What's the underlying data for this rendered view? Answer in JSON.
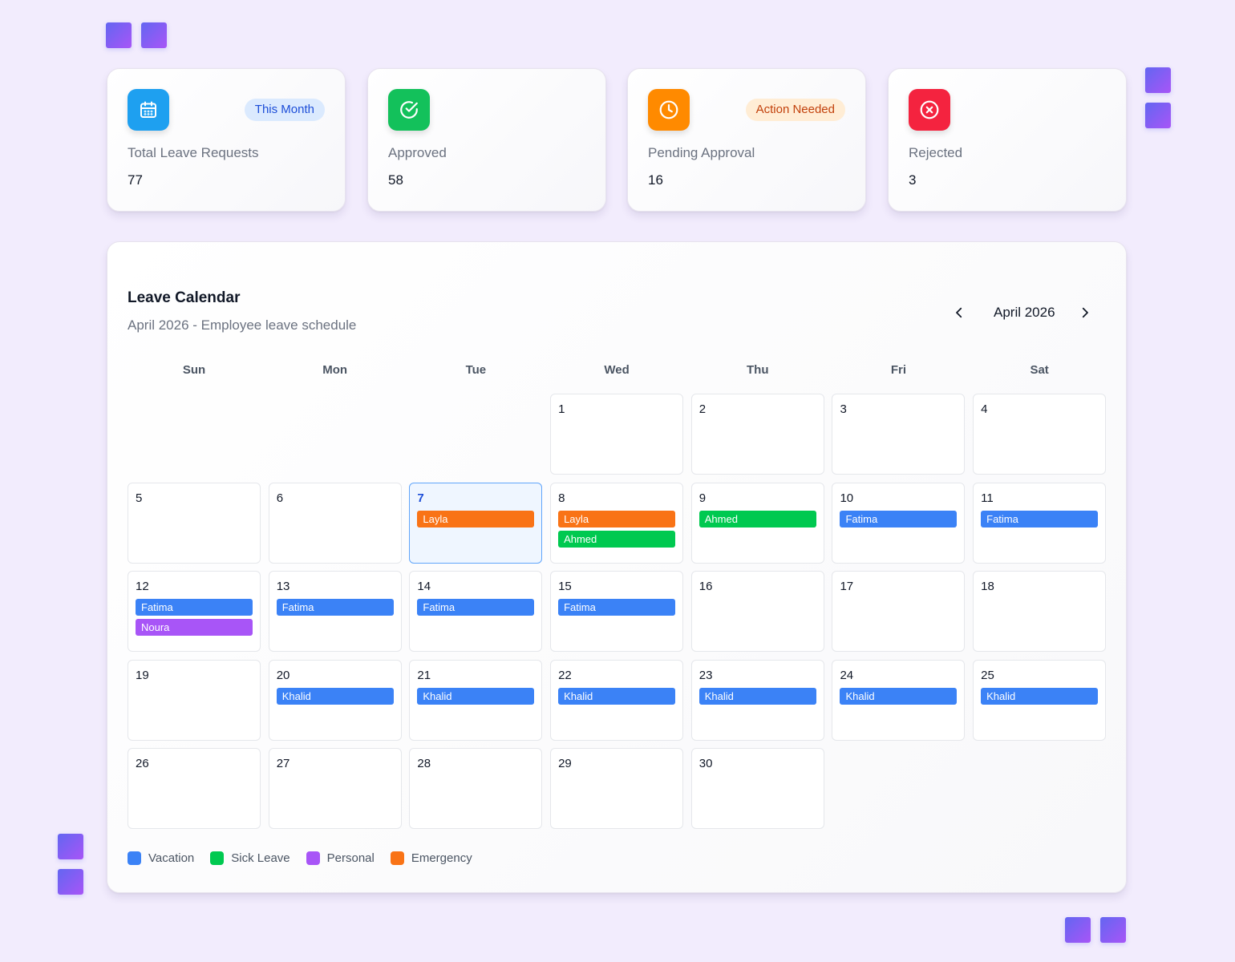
{
  "stats": [
    {
      "label": "Total Leave Requests",
      "value": "77",
      "badge": "This Month",
      "icon": "calendar-icon",
      "icon_bg": "#1ea0f0",
      "badge_bg": "#dbeafe",
      "badge_color": "#1d4ed8"
    },
    {
      "label": "Approved",
      "value": "58",
      "badge": "",
      "icon": "check-circle-icon",
      "icon_bg": "#13c15b"
    },
    {
      "label": "Pending Approval",
      "value": "16",
      "badge": "Action Needed",
      "icon": "clock-icon",
      "icon_bg": "#ff8a00",
      "badge_bg": "#ffedd5",
      "badge_color": "#c2410c"
    },
    {
      "label": "Rejected",
      "value": "3",
      "badge": "",
      "icon": "x-circle-icon",
      "icon_bg": "#f4233f"
    }
  ],
  "calendar": {
    "title": "Leave Calendar",
    "subtitle": "April 2026 - Employee leave schedule",
    "month_label": "April 2026",
    "prev_icon": "chevron-left-icon",
    "next_icon": "chevron-right-icon",
    "weekdays": [
      "Sun",
      "Mon",
      "Tue",
      "Wed",
      "Thu",
      "Fri",
      "Sat"
    ],
    "leading_blanks": 3,
    "today": 7,
    "days": [
      {
        "day": "1",
        "events": []
      },
      {
        "day": "2",
        "events": []
      },
      {
        "day": "3",
        "events": []
      },
      {
        "day": "4",
        "events": []
      },
      {
        "day": "5",
        "events": []
      },
      {
        "day": "6",
        "events": []
      },
      {
        "day": "7",
        "events": [
          {
            "name": "Layla",
            "type": "emergency"
          }
        ]
      },
      {
        "day": "8",
        "events": [
          {
            "name": "Layla",
            "type": "emergency"
          },
          {
            "name": "Ahmed",
            "type": "sick"
          }
        ]
      },
      {
        "day": "9",
        "events": [
          {
            "name": "Ahmed",
            "type": "sick"
          }
        ]
      },
      {
        "day": "10",
        "events": [
          {
            "name": "Fatima",
            "type": "vacation"
          }
        ]
      },
      {
        "day": "11",
        "events": [
          {
            "name": "Fatima",
            "type": "vacation"
          }
        ]
      },
      {
        "day": "12",
        "events": [
          {
            "name": "Fatima",
            "type": "vacation"
          },
          {
            "name": "Noura",
            "type": "personal"
          }
        ]
      },
      {
        "day": "13",
        "events": [
          {
            "name": "Fatima",
            "type": "vacation"
          }
        ]
      },
      {
        "day": "14",
        "events": [
          {
            "name": "Fatima",
            "type": "vacation"
          }
        ]
      },
      {
        "day": "15",
        "events": [
          {
            "name": "Fatima",
            "type": "vacation"
          }
        ]
      },
      {
        "day": "16",
        "events": []
      },
      {
        "day": "17",
        "events": []
      },
      {
        "day": "18",
        "events": []
      },
      {
        "day": "19",
        "events": []
      },
      {
        "day": "20",
        "events": [
          {
            "name": "Khalid",
            "type": "vacation"
          }
        ]
      },
      {
        "day": "21",
        "events": [
          {
            "name": "Khalid",
            "type": "vacation"
          }
        ]
      },
      {
        "day": "22",
        "events": [
          {
            "name": "Khalid",
            "type": "vacation"
          }
        ]
      },
      {
        "day": "23",
        "events": [
          {
            "name": "Khalid",
            "type": "vacation"
          }
        ]
      },
      {
        "day": "24",
        "events": [
          {
            "name": "Khalid",
            "type": "vacation"
          }
        ]
      },
      {
        "day": "25",
        "events": [
          {
            "name": "Khalid",
            "type": "vacation"
          }
        ]
      },
      {
        "day": "26",
        "events": []
      },
      {
        "day": "27",
        "events": []
      },
      {
        "day": "28",
        "events": []
      },
      {
        "day": "29",
        "events": []
      },
      {
        "day": "30",
        "events": []
      }
    ]
  },
  "legend": [
    {
      "label": "Vacation",
      "type": "vacation",
      "color": "#3b82f6"
    },
    {
      "label": "Sick Leave",
      "type": "sick",
      "color": "#00c950"
    },
    {
      "label": "Personal",
      "type": "personal",
      "color": "#a855f7"
    },
    {
      "label": "Emergency",
      "type": "emergency",
      "color": "#f97316"
    }
  ]
}
